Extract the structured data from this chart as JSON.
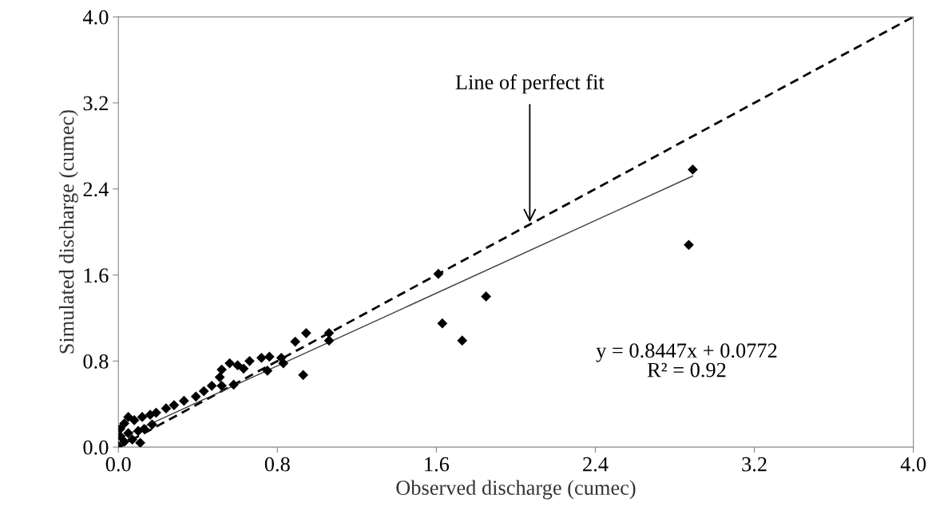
{
  "chart_data": {
    "type": "scatter",
    "xlabel": "Observed discharge (cumec)",
    "ylabel": "Simulated discharge (cumec)",
    "xlim": [
      0,
      4
    ],
    "ylim": [
      0,
      4
    ],
    "xticks": [
      {
        "value": 0,
        "label": "0.0"
      },
      0.8,
      1.6,
      2.4,
      3.2,
      {
        "value": 4,
        "label": "4.0"
      }
    ],
    "yticks": [
      {
        "value": 0,
        "label": "0.0"
      },
      0.8,
      1.6,
      2.4,
      3.2,
      {
        "value": 4,
        "label": "4.0"
      }
    ],
    "grid": false,
    "legend": false,
    "series": [
      {
        "color": "#000000",
        "marker": "diamond",
        "x": [
          2.89,
          2.87,
          1.61,
          1.85,
          1.63,
          1.73,
          1.06,
          1.06,
          0.945,
          0.89,
          0.93,
          0.82,
          0.83,
          0.76,
          0.72,
          0.75,
          0.66,
          0.63,
          0.6,
          0.56,
          0.52,
          0.58,
          0.51,
          0.52,
          0.47,
          0.43,
          0.39,
          0.33,
          0.28,
          0.24,
          0.19,
          0.16,
          0.17,
          0.12,
          0.13,
          0.08,
          0.05,
          0.03,
          0.01,
          0.01,
          0.03,
          0.11,
          0.07,
          0.0,
          0.05,
          0.1
        ],
        "values": [
          2.58,
          1.88,
          1.61,
          1.4,
          1.15,
          0.99,
          1.06,
          0.99,
          1.06,
          0.98,
          0.67,
          0.83,
          0.78,
          0.84,
          0.83,
          0.71,
          0.8,
          0.73,
          0.76,
          0.78,
          0.72,
          0.58,
          0.65,
          0.57,
          0.57,
          0.52,
          0.47,
          0.43,
          0.39,
          0.36,
          0.32,
          0.3,
          0.21,
          0.28,
          0.17,
          0.25,
          0.28,
          0.22,
          0.17,
          0.1,
          0.05,
          0.04,
          0.07,
          0.01,
          0.13,
          0.15
        ]
      },
      {
        "type": "line",
        "color": "#000000",
        "line_style": "dashed",
        "x": [
          0,
          4
        ],
        "values": [
          0,
          4
        ]
      },
      {
        "type": "line",
        "color": "#404040",
        "line_style": "solid",
        "x": [
          0,
          2.89
        ],
        "values": [
          0.08,
          2.52
        ]
      }
    ],
    "annotations": [
      {
        "text": "Line of perfect fit",
        "x": 2.07,
        "y": 2.07
      },
      "y = 0.8447x + 0.0772",
      "R² = 0.92"
    ]
  }
}
